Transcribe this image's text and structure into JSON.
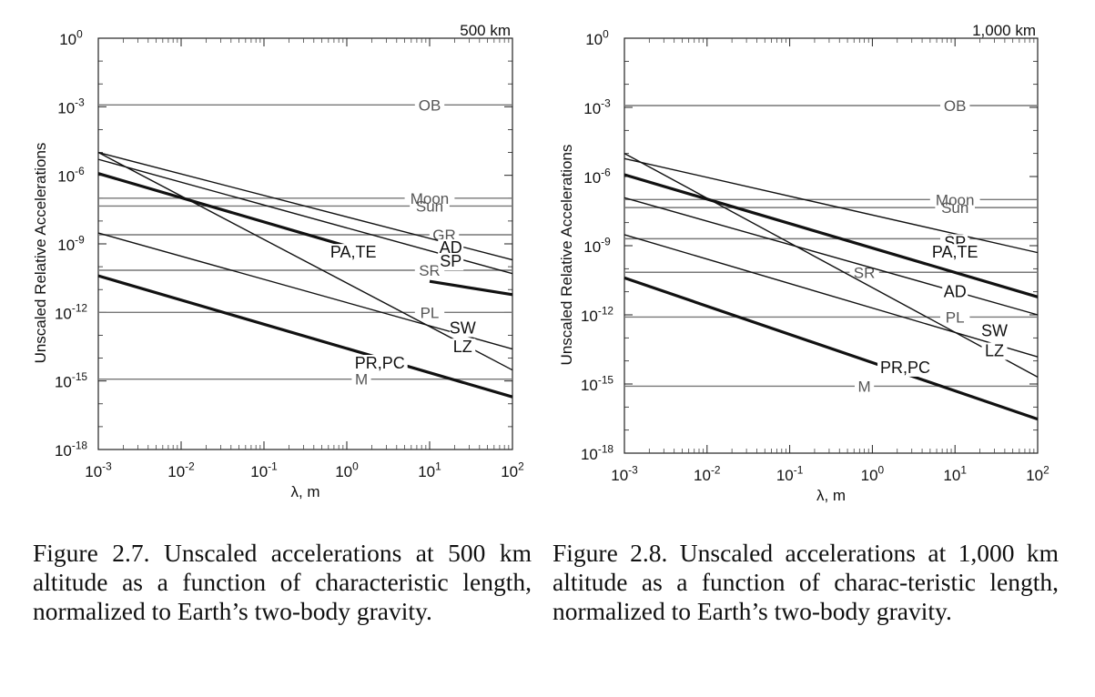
{
  "chart_data": [
    {
      "type": "line",
      "corner_label": "500 km",
      "ylabel": "Unscaled Relative Accelerations",
      "xlabel": "λ, m",
      "xscale": "log",
      "yscale": "log",
      "xlim": [
        0.001,
        100
      ],
      "ylim": [
        1e-18,
        1
      ],
      "xticks": [
        "10^-3",
        "10^-2",
        "10^-1",
        "10^0",
        "10^1",
        "10^2"
      ],
      "yticks": [
        "10^0",
        "10^-3",
        "10^-6",
        "10^-9",
        "10^-12",
        "10^-15",
        "10^-18"
      ],
      "horizontal_series": [
        {
          "name": "OB",
          "y": 0.0012,
          "label_x": 10
        },
        {
          "name": "Moon",
          "y": 1e-07,
          "label_x": 10
        },
        {
          "name": "Sun",
          "y": 4.5e-08,
          "label_x": 10
        },
        {
          "name": "GR",
          "y": 2.5e-09,
          "label_x": 15
        },
        {
          "name": "SR",
          "y": 7e-11,
          "label_x": 10
        },
        {
          "name": "PL",
          "y": 1e-12,
          "label_x": 10
        },
        {
          "name": "M",
          "y": 1.2e-15,
          "label_x": 1.5
        }
      ],
      "sloped_series": [
        {
          "name": "GR",
          "x": [
            0.001,
            100
          ],
          "y": [
            1e-05,
            2e-10
          ],
          "label": null,
          "weight": "thin"
        },
        {
          "name": "AD",
          "x": [
            0.001,
            100
          ],
          "y": [
            5e-06,
            5e-11
          ],
          "label": {
            "text": "AD",
            "x": 18,
            "y": 4e-10
          },
          "weight": "thin"
        },
        {
          "name": "SP",
          "x": [
            0.001,
            100
          ],
          "y": [
            1.2e-06,
            6e-12
          ],
          "label": {
            "text": "SP",
            "x": 18,
            "y": 1e-10
          },
          "weight": "thick",
          "gap_x": [
            2.5,
            10
          ]
        },
        {
          "name": "PA,TE",
          "x": [
            2.5,
            10
          ],
          "y": [
            1.2e-06,
            1.2e-06
          ],
          "label": {
            "text": "PA,TE",
            "x": 1.2,
            "y": 2.5e-10
          },
          "weight": "thick",
          "hidden": true
        },
        {
          "name": "SW",
          "x": [
            0.001,
            100
          ],
          "y": [
            3e-09,
            2.5e-14
          ],
          "label": {
            "text": "SW",
            "x": 25,
            "y": 1.2e-13
          },
          "weight": "thin"
        },
        {
          "name": "LZ",
          "x": [
            0.001,
            100
          ],
          "y": [
            1e-05,
            3e-15
          ],
          "label": {
            "text": "LZ",
            "x": 25,
            "y": 1.8e-14
          },
          "weight": "thin"
        },
        {
          "name": "PR,PC",
          "x": [
            0.001,
            100
          ],
          "y": [
            4e-11,
            2e-16
          ],
          "label": {
            "text": "PR,PC",
            "x": 2.5,
            "y": 3.5e-15
          },
          "weight": "thick"
        }
      ]
    },
    {
      "type": "line",
      "corner_label": "1,000 km",
      "ylabel": "Unscaled Relative Accelerations",
      "xlabel": "λ, m",
      "xscale": "log",
      "yscale": "log",
      "xlim": [
        0.001,
        100
      ],
      "ylim": [
        1e-18,
        1
      ],
      "xticks": [
        "10^-3",
        "10^-2",
        "10^-1",
        "10^0",
        "10^1",
        "10^2"
      ],
      "yticks": [
        "10^0",
        "10^-3",
        "10^-6",
        "10^-9",
        "10^-12",
        "10^-15",
        "10^-18"
      ],
      "horizontal_series": [
        {
          "name": "OB",
          "y": 0.0012,
          "label_x": 10
        },
        {
          "name": "Moon",
          "y": 1e-07,
          "label_x": 10
        },
        {
          "name": "Sun",
          "y": 4.5e-08,
          "label_x": 10
        },
        {
          "name": "GR",
          "y": 2e-09,
          "label_x": 10
        },
        {
          "name": "SR",
          "y": 7e-11,
          "label_x": 0.8
        },
        {
          "name": "PL",
          "y": 8e-13,
          "label_x": 10
        },
        {
          "name": "M",
          "y": 8e-16,
          "label_x": 0.8
        }
      ],
      "sloped_series": [
        {
          "name": "SP",
          "x": [
            0.001,
            100
          ],
          "y": [
            6e-06,
            5e-10
          ],
          "label": {
            "text": "SP",
            "x": 10,
            "y": 8e-10
          },
          "weight": "thin"
        },
        {
          "name": "PA,TE",
          "x": [
            0.001,
            100
          ],
          "y": [
            1.2e-06,
            6e-12
          ],
          "label": {
            "text": "PA,TE",
            "x": 10,
            "y": 3e-10
          },
          "weight": "thick"
        },
        {
          "name": "AD",
          "x": [
            0.001,
            100
          ],
          "y": [
            1.2e-07,
            1e-12
          ],
          "label": {
            "text": "AD",
            "x": 10,
            "y": 6e-12
          },
          "weight": "thin"
        },
        {
          "name": "SW",
          "x": [
            0.001,
            100
          ],
          "y": [
            3e-09,
            1.5e-14
          ],
          "label": {
            "text": "SW",
            "x": 30,
            "y": 1.2e-13
          },
          "weight": "thin"
        },
        {
          "name": "LZ",
          "x": [
            0.001,
            100
          ],
          "y": [
            1e-05,
            2e-15
          ],
          "label": {
            "text": "LZ",
            "x": 30,
            "y": 1.6e-14
          },
          "weight": "thin"
        },
        {
          "name": "PR,PC",
          "x": [
            0.001,
            100
          ],
          "y": [
            4e-11,
            3e-17
          ],
          "label": {
            "text": "PR,PC",
            "x": 2.5,
            "y": 3e-15
          },
          "weight": "thick"
        }
      ]
    }
  ],
  "captions": [
    "Figure 2.7.  Unscaled accelerations at 500 km altitude as a function of characteristic length, normalized to Earth’s two-body gravity.",
    "Figure 2.8.   Unscaled accelerations at 1,000 km altitude as a function of charac-teristic length, normalized to Earth’s two-body gravity."
  ]
}
